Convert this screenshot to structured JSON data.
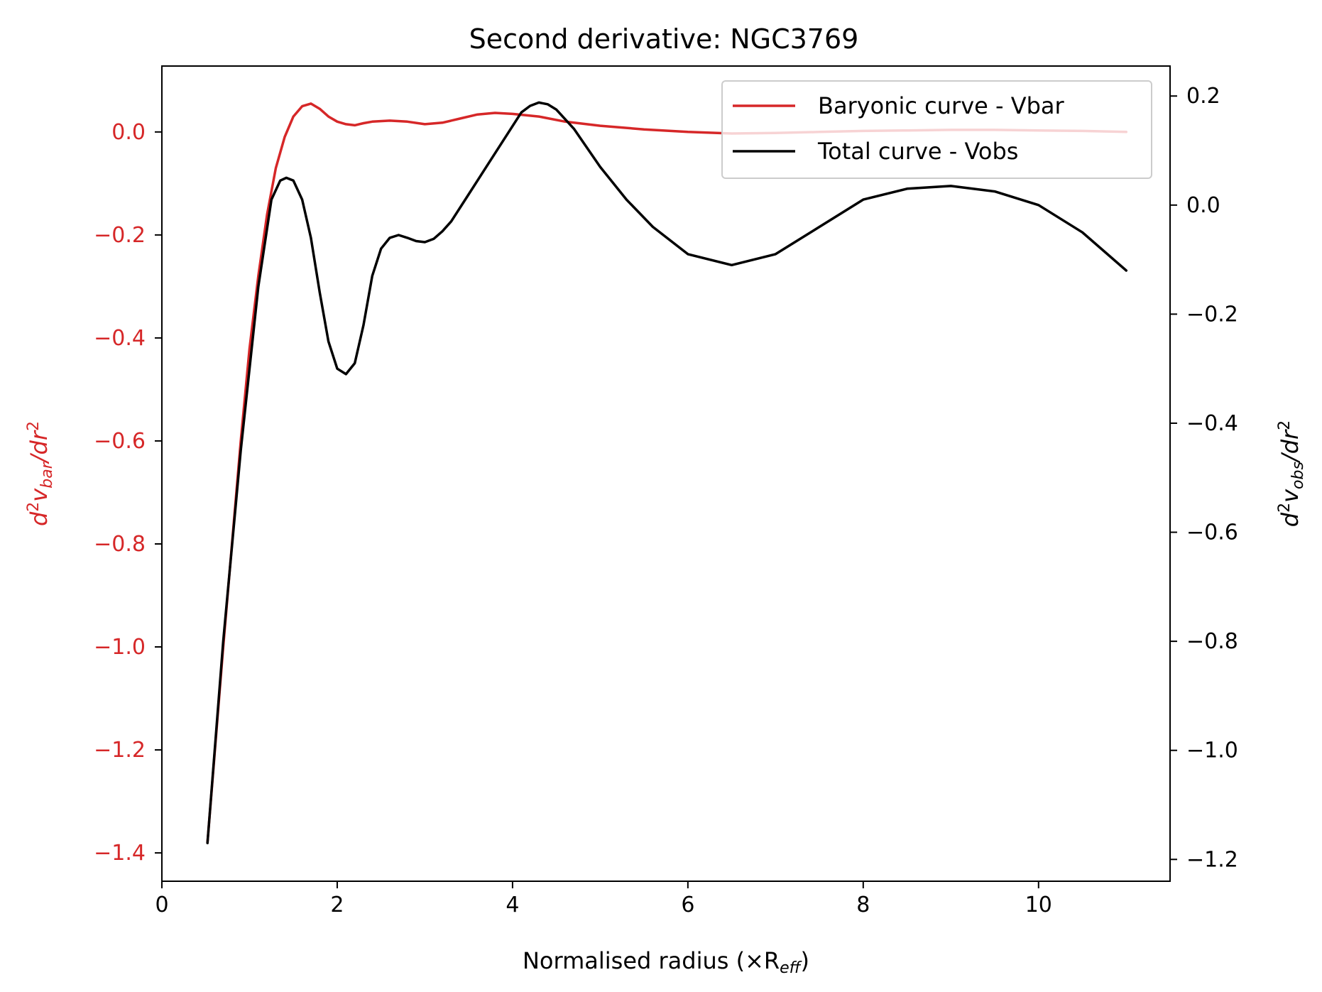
{
  "chart_data": {
    "type": "line",
    "title": "Second derivative: NGC3769",
    "xlabel": "Normalised radius (×R",
    "xlabel_sub": "eff",
    "xlabel_close": ")",
    "ylabel_left": {
      "base": "d",
      "sup1": "2",
      "v": "v",
      "sub": "bar",
      "slash": "/dr",
      "sup2": "2"
    },
    "ylabel_right": {
      "base": "d",
      "sup1": "2",
      "v": "v",
      "sub": "obs",
      "slash": "/dr",
      "sup2": "2"
    },
    "xlim": [
      0,
      11.5
    ],
    "ylim_left": [
      -1.455,
      0.128
    ],
    "ylim_right": [
      -1.24,
      0.255
    ],
    "x_ticks": [
      0,
      2,
      4,
      6,
      8,
      10
    ],
    "x_tick_labels": [
      "0",
      "2",
      "4",
      "6",
      "8",
      "10"
    ],
    "y_left_ticks": [
      0.0,
      -0.2,
      -0.4,
      -0.6,
      -0.8,
      -1.0,
      -1.2,
      -1.4
    ],
    "y_left_tick_labels": [
      "0.0",
      "−0.2",
      "−0.4",
      "−0.6",
      "−0.8",
      "−1.0",
      "−1.2",
      "−1.4"
    ],
    "y_right_ticks": [
      0.2,
      0.0,
      -0.2,
      -0.4,
      -0.6,
      -0.8,
      -1.0,
      -1.2
    ],
    "y_right_tick_labels": [
      "0.2",
      "0.0",
      "−0.2",
      "−0.4",
      "−0.6",
      "−0.8",
      "−1.0",
      "−1.2"
    ],
    "legend_position": "upper right",
    "series": [
      {
        "name": "Baryonic curve - Vbar",
        "axis": "left",
        "color": "#d62728",
        "x": [
          0.52,
          0.7,
          0.9,
          1.0,
          1.1,
          1.2,
          1.3,
          1.4,
          1.5,
          1.6,
          1.7,
          1.8,
          1.9,
          2.0,
          2.1,
          2.2,
          2.3,
          2.4,
          2.6,
          2.8,
          3.0,
          3.2,
          3.4,
          3.6,
          3.8,
          4.0,
          4.3,
          4.6,
          5.0,
          5.5,
          6.0,
          6.5,
          7.0,
          7.5,
          8.0,
          8.5,
          9.0,
          9.5,
          10.0,
          10.5,
          11.0
        ],
        "y": [
          -1.38,
          -1.0,
          -0.6,
          -0.42,
          -0.28,
          -0.16,
          -0.07,
          -0.01,
          0.03,
          0.05,
          0.055,
          0.045,
          0.03,
          0.02,
          0.015,
          0.013,
          0.017,
          0.02,
          0.022,
          0.02,
          0.015,
          0.018,
          0.026,
          0.034,
          0.037,
          0.035,
          0.03,
          0.02,
          0.012,
          0.005,
          0.0,
          -0.003,
          -0.002,
          0.0,
          0.002,
          0.003,
          0.004,
          0.004,
          0.003,
          0.002,
          0.0
        ]
      },
      {
        "name": "Total curve - Vobs",
        "axis": "right",
        "color": "#000000",
        "x": [
          0.52,
          0.7,
          0.9,
          1.1,
          1.25,
          1.35,
          1.42,
          1.5,
          1.6,
          1.7,
          1.8,
          1.9,
          2.0,
          2.1,
          2.2,
          2.3,
          2.4,
          2.5,
          2.6,
          2.7,
          2.8,
          2.9,
          3.0,
          3.1,
          3.2,
          3.3,
          3.5,
          3.7,
          3.9,
          4.1,
          4.2,
          4.3,
          4.4,
          4.5,
          4.7,
          5.0,
          5.3,
          5.6,
          6.0,
          6.5,
          7.0,
          7.5,
          8.0,
          8.5,
          9.0,
          9.5,
          10.0,
          10.5,
          11.0
        ],
        "y": [
          -1.17,
          -0.8,
          -0.45,
          -0.15,
          0.01,
          0.045,
          0.05,
          0.045,
          0.01,
          -0.06,
          -0.16,
          -0.25,
          -0.3,
          -0.31,
          -0.29,
          -0.22,
          -0.13,
          -0.08,
          -0.06,
          -0.055,
          -0.06,
          -0.066,
          -0.068,
          -0.062,
          -0.048,
          -0.03,
          0.02,
          0.07,
          0.12,
          0.17,
          0.182,
          0.188,
          0.185,
          0.175,
          0.14,
          0.07,
          0.01,
          -0.04,
          -0.09,
          -0.11,
          -0.09,
          -0.04,
          0.01,
          0.03,
          0.035,
          0.025,
          0.0,
          -0.05,
          -0.12
        ]
      }
    ]
  }
}
